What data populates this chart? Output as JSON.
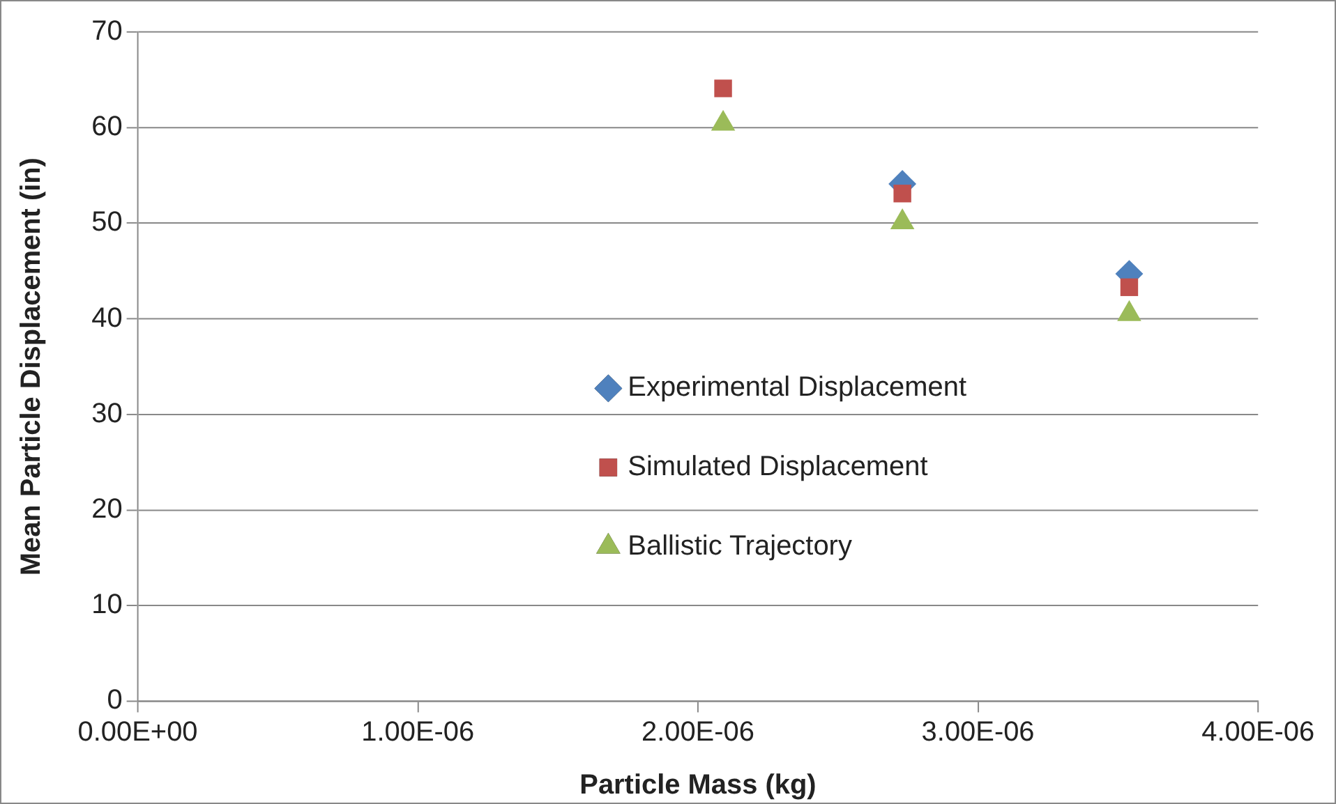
{
  "chart_data": {
    "type": "scatter",
    "xlabel": "Particle Mass (kg)",
    "ylabel": "Mean Particle Displacement (in)",
    "series": [
      {
        "name": "Experimental Displacement",
        "color": "#4f81bd",
        "marker": "diamond",
        "x": [
          null,
          2.73e-06,
          3.54e-06
        ],
        "values": [
          null,
          54.1,
          44.7
        ]
      },
      {
        "name": "Simulated Displacement",
        "color": "#c0504d",
        "marker": "square",
        "x": [
          2.09e-06,
          2.73e-06,
          3.54e-06
        ],
        "values": [
          64.1,
          53.1,
          43.3
        ]
      },
      {
        "name": "Ballistic Trajectory",
        "color": "#9bbb59",
        "marker": "triangle",
        "x": [
          2.09e-06,
          2.73e-06,
          3.54e-06
        ],
        "values": [
          60.4,
          50.1,
          40.5
        ]
      }
    ],
    "xlim": [
      0,
      4e-06
    ],
    "xticks": [
      {
        "value": 0,
        "label": "0.00E+00"
      },
      {
        "value": 1e-06,
        "label": "1.00E-06"
      },
      {
        "value": 2e-06,
        "label": "2.00E-06"
      },
      {
        "value": 3e-06,
        "label": "3.00E-06"
      },
      {
        "value": 4e-06,
        "label": "4.00E-06"
      }
    ],
    "ylim": [
      0,
      70
    ],
    "yticks": [
      0,
      10,
      20,
      30,
      40,
      50,
      60,
      70
    ],
    "grid": "y",
    "legend": "center"
  }
}
